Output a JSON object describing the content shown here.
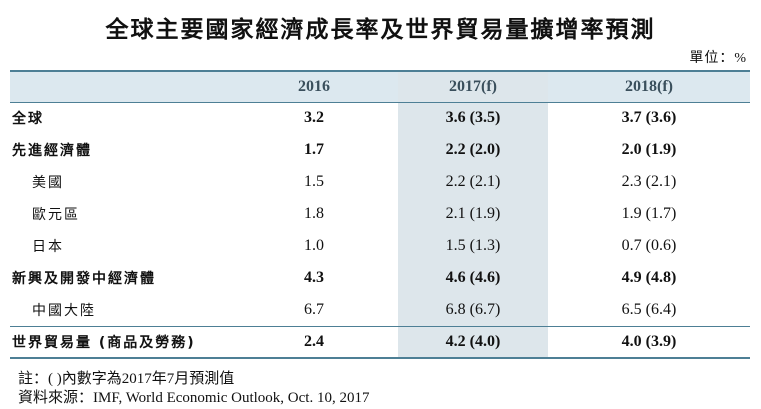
{
  "header": {
    "title": "全球主要國家經濟成長率及世界貿易量擴增率預測",
    "unit": "單位：%"
  },
  "table": {
    "columns": [
      "2016",
      "2017(f)",
      "2018(f)"
    ],
    "rows": [
      [
        "全球",
        "3.2",
        "3.6 (3.5)",
        "3.7 (3.6)"
      ],
      [
        "先進經濟體",
        "1.7",
        "2.2 (2.0)",
        "2.0 (1.9)"
      ],
      [
        "美國",
        "1.5",
        "2.2 (2.1)",
        "2.3 (2.1)"
      ],
      [
        "歐元區",
        "1.8",
        "2.1 (1.9)",
        "1.9 (1.7)"
      ],
      [
        "日本",
        "1.0",
        "1.5 (1.3)",
        "0.7 (0.6)"
      ],
      [
        "新興及開發中經濟體",
        "4.3",
        "4.6 (4.6)",
        "4.9 (4.8)"
      ],
      [
        "中國大陸",
        "6.7",
        "6.8 (6.7)",
        "6.5 (6.4)"
      ],
      [
        "世界貿易量 (商品及勞務)",
        "2.4",
        "4.2 (4.0)",
        "4.0 (3.9)"
      ]
    ]
  },
  "notes": [
    "註：( )內數字為2017年7月預測值",
    "資料來源：IMF, World Economic Outlook, Oct. 10, 2017"
  ]
}
